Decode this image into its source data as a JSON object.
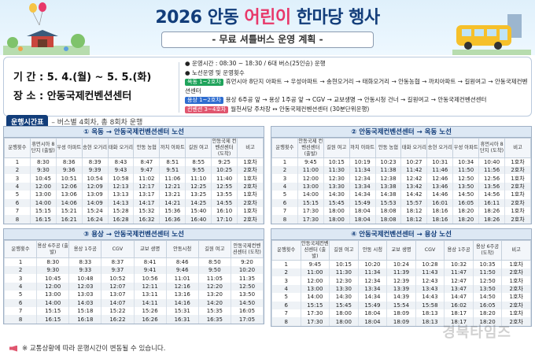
{
  "header": {
    "title_pre": "2026 안동 ",
    "title_accent": "어린이",
    "title_post": " 한마당 행사",
    "subtitle": "- 무료 셔틀버스 운영 계획 -"
  },
  "info": {
    "period": "기 간 : 5. 4.(월) ~ 5. 5.(화)",
    "place": "장 소 : 안동국제컨벤션센터",
    "ops_time": "운영시간 : 08:30 ~ 18:30 / 6대 버스(25인승) 운행",
    "route_head": "노선운영 및 운영횟수",
    "routes": [
      {
        "tag": "옥동 1~2호차",
        "text": "휴먼시아 8단지 아파트 → 우성아파트 → 송현오거리 → 태화오거리 → 안동농협 → 까치아파트 → 길원여고 → 안동국제컨벤션센터"
      },
      {
        "tag": "용상 1~2호차",
        "text": "용상 6주공 앞 → 용상 1주공 앞 → CGV → 교보생명 → 안동시청 건너 → 길원여고 → 안동국제컨벤션센터"
      },
      {
        "tag": "컨벤션 3~4호차",
        "text": "월천서당 주차장 ↔ 안동국제컨벤션센터 (30분단위운행)"
      }
    ]
  },
  "schedule": {
    "badge": "운행시간표",
    "note": "– 버스별 4회차, 총 8회차 운행"
  },
  "panels": [
    {
      "title": "① 옥동 → 안동국제컨벤션센터 노선",
      "headers": [
        "운행횟수",
        "휴먼시아 8단지 (출발)",
        "우성 아파트",
        "송현 오거리",
        "태화 오거리",
        "안동 농협",
        "까치 아파트",
        "길원 여고",
        "안동국제 컨벤션센터 (도착)",
        "비고"
      ],
      "rows": [
        [
          "1",
          "8:30",
          "8:36",
          "8:39",
          "8:43",
          "8:47",
          "8:51",
          "8:55",
          "9:25",
          "1호차"
        ],
        [
          "2",
          "9:30",
          "9:36",
          "9:39",
          "9:43",
          "9:47",
          "9:51",
          "9:55",
          "10:25",
          "2호차"
        ],
        [
          "3",
          "10:45",
          "10:51",
          "10:54",
          "10:58",
          "11:02",
          "11:06",
          "11:10",
          "11:40",
          "1호차"
        ],
        [
          "4",
          "12:00",
          "12:06",
          "12:09",
          "12:13",
          "12:17",
          "12:21",
          "12:25",
          "12:55",
          "2호차"
        ],
        [
          "5",
          "13:00",
          "13:06",
          "13:09",
          "13:13",
          "13:17",
          "13:21",
          "13:25",
          "13:55",
          "1호차"
        ],
        [
          "6",
          "14:00",
          "14:06",
          "14:09",
          "14:13",
          "14:17",
          "14:21",
          "14:25",
          "14:55",
          "2호차"
        ],
        [
          "7",
          "15:15",
          "15:21",
          "15:24",
          "15:28",
          "15:32",
          "15:36",
          "15:40",
          "16:10",
          "1호차"
        ],
        [
          "8",
          "16:15",
          "16:21",
          "16:24",
          "16:28",
          "16:32",
          "16:36",
          "16:40",
          "17:10",
          "2호차"
        ]
      ]
    },
    {
      "title": "② 안동국제컨벤션센터 → 옥동 노선",
      "headers": [
        "운행횟수",
        "안동국제 컨벤션센터 (출발)",
        "길원 여고",
        "까치 아파트",
        "안동 농협",
        "태화 오거리",
        "송현 오거리",
        "우성 아파트",
        "휴먼시아 8단지 (도착)",
        "비고"
      ],
      "rows": [
        [
          "1",
          "9:45",
          "10:15",
          "10:19",
          "10:23",
          "10:27",
          "10:31",
          "10:34",
          "10:40",
          "1호차"
        ],
        [
          "2",
          "11:00",
          "11:30",
          "11:34",
          "11:38",
          "11:42",
          "11:46",
          "11:50",
          "11:56",
          "2호차"
        ],
        [
          "3",
          "12:00",
          "12:30",
          "12:34",
          "12:38",
          "12:42",
          "12:46",
          "12:50",
          "12:56",
          "1호차"
        ],
        [
          "4",
          "13:00",
          "13:30",
          "13:34",
          "13:38",
          "13:42",
          "13:46",
          "13:50",
          "13:56",
          "2호차"
        ],
        [
          "5",
          "14:00",
          "14:30",
          "14:34",
          "14:38",
          "14:42",
          "14:46",
          "14:50",
          "14:56",
          "1호차"
        ],
        [
          "6",
          "15:15",
          "15:45",
          "15:49",
          "15:53",
          "15:57",
          "16:01",
          "16:05",
          "16:11",
          "2호차"
        ],
        [
          "7",
          "17:30",
          "18:00",
          "18:04",
          "18:08",
          "18:12",
          "18:16",
          "18:20",
          "18:26",
          "1호차"
        ],
        [
          "8",
          "17:30",
          "18:00",
          "18:04",
          "18:08",
          "18:12",
          "18:16",
          "18:20",
          "18:26",
          "2호차"
        ]
      ]
    },
    {
      "title": "③ 용상 → 안동국제컨벤션센터 노선",
      "headers": [
        "운행횟수",
        "용상 6주공 (출발)",
        "용상 1주공",
        "CGV",
        "교보 생명",
        "안동시청",
        "길원 여고",
        "안동국제컨벤션센터 (도착)"
      ],
      "rows": [
        [
          "1",
          "8:30",
          "8:33",
          "8:37",
          "8:41",
          "8:46",
          "8:50",
          "9:20"
        ],
        [
          "2",
          "9:30",
          "9:33",
          "9:37",
          "9:41",
          "9:46",
          "9:50",
          "10:20"
        ],
        [
          "3",
          "10:45",
          "10:48",
          "10:52",
          "10:56",
          "11:01",
          "11:05",
          "11:35"
        ],
        [
          "4",
          "12:00",
          "12:03",
          "12:07",
          "12:11",
          "12:16",
          "12:20",
          "12:50"
        ],
        [
          "5",
          "13:00",
          "13:03",
          "13:07",
          "13:11",
          "13:16",
          "13:20",
          "13:50"
        ],
        [
          "6",
          "14:00",
          "14:03",
          "14:07",
          "14:11",
          "14:16",
          "14:20",
          "14:50"
        ],
        [
          "7",
          "15:15",
          "15:18",
          "15:22",
          "15:26",
          "15:31",
          "15:35",
          "16:05"
        ],
        [
          "8",
          "16:15",
          "16:18",
          "16:22",
          "16:26",
          "16:31",
          "16:35",
          "17:05"
        ]
      ]
    },
    {
      "title": "④ 안동국제컨벤션센터 → 용상 노선",
      "headers": [
        "운행횟수",
        "안동국제컨벤션센터 (출발)",
        "길원 여고",
        "안동 시청",
        "교보 생명",
        "CGV",
        "용상 1주공",
        "용상 6주공 (도착)",
        "비고"
      ],
      "rows": [
        [
          "1",
          "9:45",
          "10:15",
          "10:20",
          "10:24",
          "10:28",
          "10:32",
          "10:35",
          "1호차"
        ],
        [
          "2",
          "11:00",
          "11:30",
          "11:34",
          "11:39",
          "11:43",
          "11:47",
          "11:50",
          "2호차"
        ],
        [
          "3",
          "12:00",
          "12:30",
          "12:34",
          "12:39",
          "12:43",
          "12:47",
          "12:50",
          "1호차"
        ],
        [
          "4",
          "13:00",
          "13:30",
          "13:34",
          "13:39",
          "13:43",
          "13:47",
          "13:50",
          "2호차"
        ],
        [
          "5",
          "14:00",
          "14:30",
          "14:34",
          "14:39",
          "14:43",
          "14:47",
          "14:50",
          "1호차"
        ],
        [
          "6",
          "15:15",
          "15:45",
          "15:49",
          "15:54",
          "15:58",
          "16:02",
          "16:05",
          "2호차"
        ],
        [
          "7",
          "17:30",
          "18:00",
          "18:04",
          "18:09",
          "18:13",
          "18:17",
          "18:20",
          "1호차"
        ],
        [
          "8",
          "17:30",
          "18:00",
          "18:04",
          "18:09",
          "18:13",
          "18:17",
          "18:20",
          "2호차"
        ]
      ]
    }
  ],
  "footnote": "※ 교통상황에 따라 운행시간이 변동될 수 있습니다.",
  "watermark": "경북타임즈"
}
